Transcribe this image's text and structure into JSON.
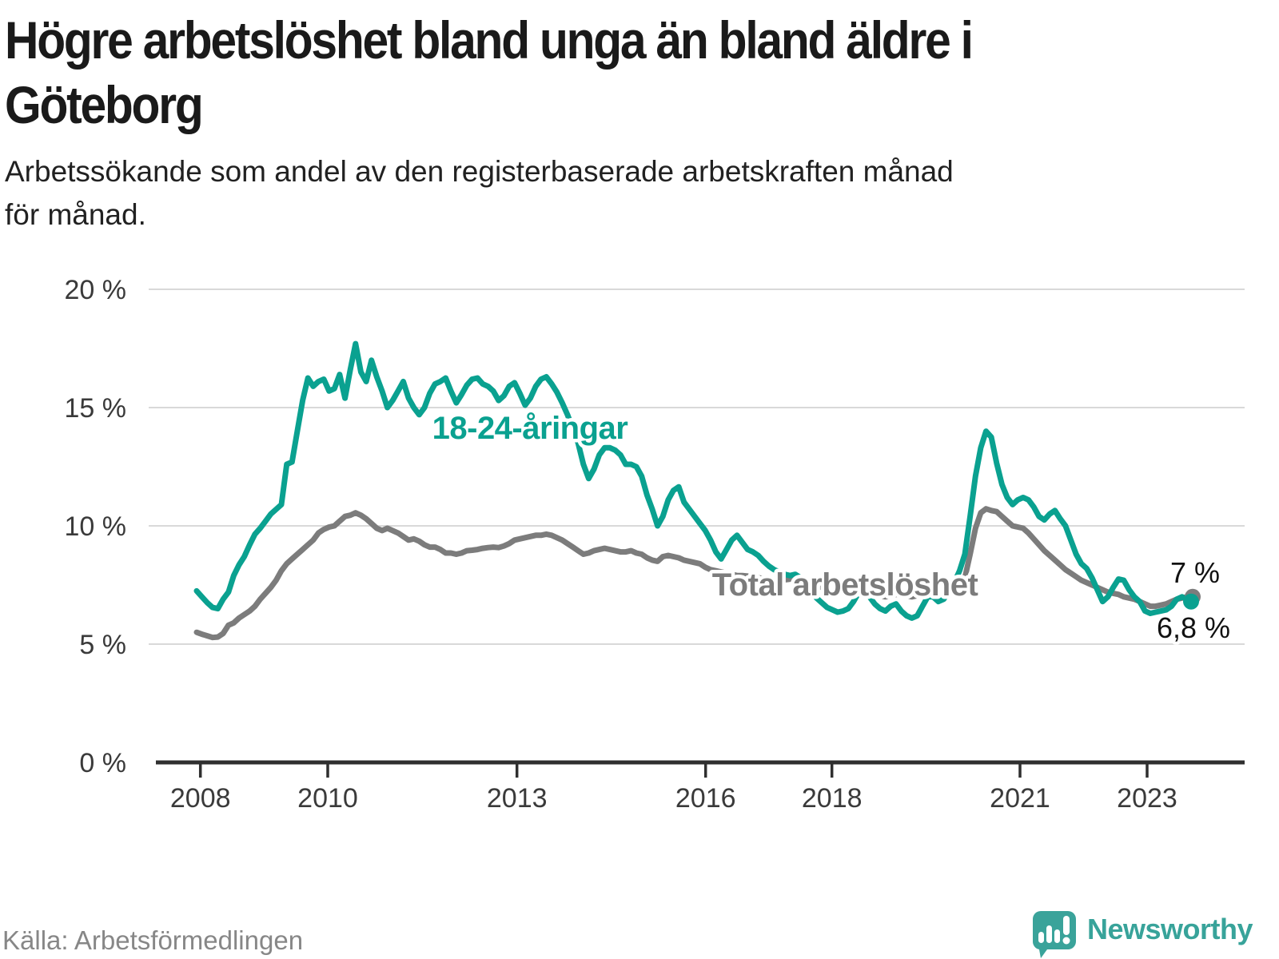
{
  "header": {
    "title_line1": "Högre arbetslöshet bland unga än bland äldre i",
    "title_line2": "Göteborg",
    "subtitle_line1": "Arbetssökande som andel av den registerbaserade arbetskraften månad",
    "subtitle_line2": "för månad."
  },
  "footer": {
    "source": "Källa: Arbetsförmedlingen",
    "brand_name": "Newsworthy",
    "brand_color": "#38a39a"
  },
  "chart_data": {
    "type": "line",
    "title": "Högre arbetslöshet bland unga än bland äldre i Göteborg",
    "subtitle": "Arbetssökande som andel av den registerbaserade arbetskraften månad för månad.",
    "unit": "%",
    "frequency": "monthly",
    "x_start": "2008-01",
    "x_end": "2023-09",
    "ylim": [
      0,
      20
    ],
    "grid": "horizontal",
    "y_tick_labels": [
      "20 %",
      "15 %",
      "10 %",
      "5 %",
      "0 %"
    ],
    "x_tick_labels": [
      "2008",
      "2010",
      "2013",
      "2016",
      "2018",
      "2021",
      "2023"
    ],
    "series": [
      {
        "name": "Total arbetslöshet",
        "color": "#7c7c7c",
        "end_label": "7 %",
        "end_value": 7.0,
        "values": [
          5.5,
          5.42,
          5.35,
          5.28,
          5.3,
          5.45,
          5.8,
          5.9,
          6.1,
          6.25,
          6.4,
          6.6,
          6.9,
          7.15,
          7.4,
          7.7,
          8.1,
          8.4,
          8.6,
          8.8,
          9.0,
          9.2,
          9.4,
          9.7,
          9.85,
          9.95,
          10.0,
          10.2,
          10.4,
          10.45,
          10.55,
          10.45,
          10.3,
          10.1,
          9.9,
          9.8,
          9.9,
          9.8,
          9.7,
          9.55,
          9.4,
          9.45,
          9.35,
          9.2,
          9.1,
          9.1,
          9.0,
          8.85,
          8.85,
          8.8,
          8.85,
          8.95,
          8.97,
          9.0,
          9.05,
          9.08,
          9.1,
          9.08,
          9.15,
          9.25,
          9.4,
          9.45,
          9.5,
          9.55,
          9.6,
          9.6,
          9.65,
          9.6,
          9.5,
          9.4,
          9.25,
          9.1,
          8.95,
          8.8,
          8.85,
          8.95,
          9.0,
          9.05,
          9.0,
          8.95,
          8.9,
          8.9,
          8.95,
          8.85,
          8.8,
          8.65,
          8.55,
          8.5,
          8.7,
          8.75,
          8.7,
          8.65,
          8.55,
          8.5,
          8.45,
          8.4,
          8.25,
          8.15,
          8.1,
          8.05,
          8.0,
          7.95,
          7.9,
          7.9,
          7.88,
          7.85,
          7.8,
          7.78,
          7.75,
          7.72,
          7.7,
          7.72,
          7.75,
          7.8,
          7.75,
          7.65,
          7.55,
          7.45,
          7.4,
          7.35,
          7.3,
          7.25,
          7.2,
          7.15,
          7.15,
          7.2,
          7.25,
          7.2,
          7.1,
          7.05,
          7.0,
          7.05,
          7.1,
          7.1,
          7.05,
          7.0,
          7.05,
          7.15,
          7.3,
          7.35,
          7.3,
          7.35,
          7.45,
          7.55,
          7.7,
          7.8,
          8.8,
          9.9,
          10.55,
          10.72,
          10.65,
          10.6,
          10.4,
          10.2,
          10.0,
          9.95,
          9.9,
          9.7,
          9.45,
          9.2,
          8.95,
          8.75,
          8.55,
          8.35,
          8.15,
          8.0,
          7.85,
          7.7,
          7.6,
          7.5,
          7.4,
          7.3,
          7.2,
          7.15,
          7.1,
          7.0,
          6.95,
          6.9,
          6.8,
          6.7,
          6.6,
          6.6,
          6.65,
          6.7,
          6.8,
          6.9,
          6.95,
          7.0,
          7.0
        ]
      },
      {
        "name": "18-24-åringar",
        "color": "#0aa190",
        "end_label": "6,8 %",
        "end_value": 6.8,
        "values": [
          7.25,
          7.0,
          6.75,
          6.55,
          6.5,
          6.9,
          7.2,
          7.9,
          8.35,
          8.7,
          9.2,
          9.65,
          9.9,
          10.2,
          10.5,
          10.7,
          10.9,
          12.6,
          12.7,
          14.0,
          15.3,
          16.25,
          15.9,
          16.1,
          16.2,
          15.7,
          15.8,
          16.4,
          15.4,
          16.6,
          17.7,
          16.5,
          16.1,
          17.0,
          16.3,
          15.7,
          15.0,
          15.3,
          15.7,
          16.1,
          15.4,
          15.0,
          14.7,
          15.0,
          15.6,
          16.0,
          16.1,
          16.25,
          15.7,
          15.2,
          15.55,
          15.95,
          16.2,
          16.25,
          16.0,
          15.9,
          15.7,
          15.3,
          15.5,
          15.9,
          16.05,
          15.6,
          15.1,
          15.4,
          15.9,
          16.2,
          16.3,
          16.0,
          15.65,
          15.2,
          14.7,
          14.1,
          13.5,
          12.6,
          12.0,
          12.4,
          13.0,
          13.3,
          13.3,
          13.2,
          13.0,
          12.6,
          12.6,
          12.5,
          12.1,
          11.3,
          10.7,
          10.0,
          10.4,
          11.1,
          11.5,
          11.65,
          11.0,
          10.7,
          10.4,
          10.1,
          9.8,
          9.4,
          8.9,
          8.6,
          9.0,
          9.4,
          9.6,
          9.3,
          9.0,
          8.9,
          8.75,
          8.5,
          8.3,
          8.15,
          8.05,
          7.95,
          7.9,
          7.95,
          7.8,
          7.5,
          7.2,
          6.95,
          6.75,
          6.55,
          6.45,
          6.35,
          6.4,
          6.5,
          6.8,
          7.2,
          7.3,
          7.0,
          6.7,
          6.5,
          6.4,
          6.6,
          6.7,
          6.4,
          6.2,
          6.1,
          6.2,
          6.6,
          7.0,
          7.0,
          6.8,
          6.9,
          7.2,
          7.6,
          8.1,
          8.8,
          10.4,
          12.1,
          13.3,
          14.0,
          13.75,
          12.65,
          11.75,
          11.2,
          10.9,
          11.1,
          11.2,
          11.1,
          10.8,
          10.4,
          10.25,
          10.5,
          10.65,
          10.3,
          10.0,
          9.4,
          8.8,
          8.4,
          8.2,
          7.8,
          7.3,
          6.8,
          7.0,
          7.4,
          7.75,
          7.7,
          7.3,
          7.0,
          6.8,
          6.4,
          6.3,
          6.35,
          6.4,
          6.45,
          6.6,
          6.9,
          7.0,
          6.9,
          6.8
        ]
      }
    ],
    "legend_position": "inline-labels"
  }
}
